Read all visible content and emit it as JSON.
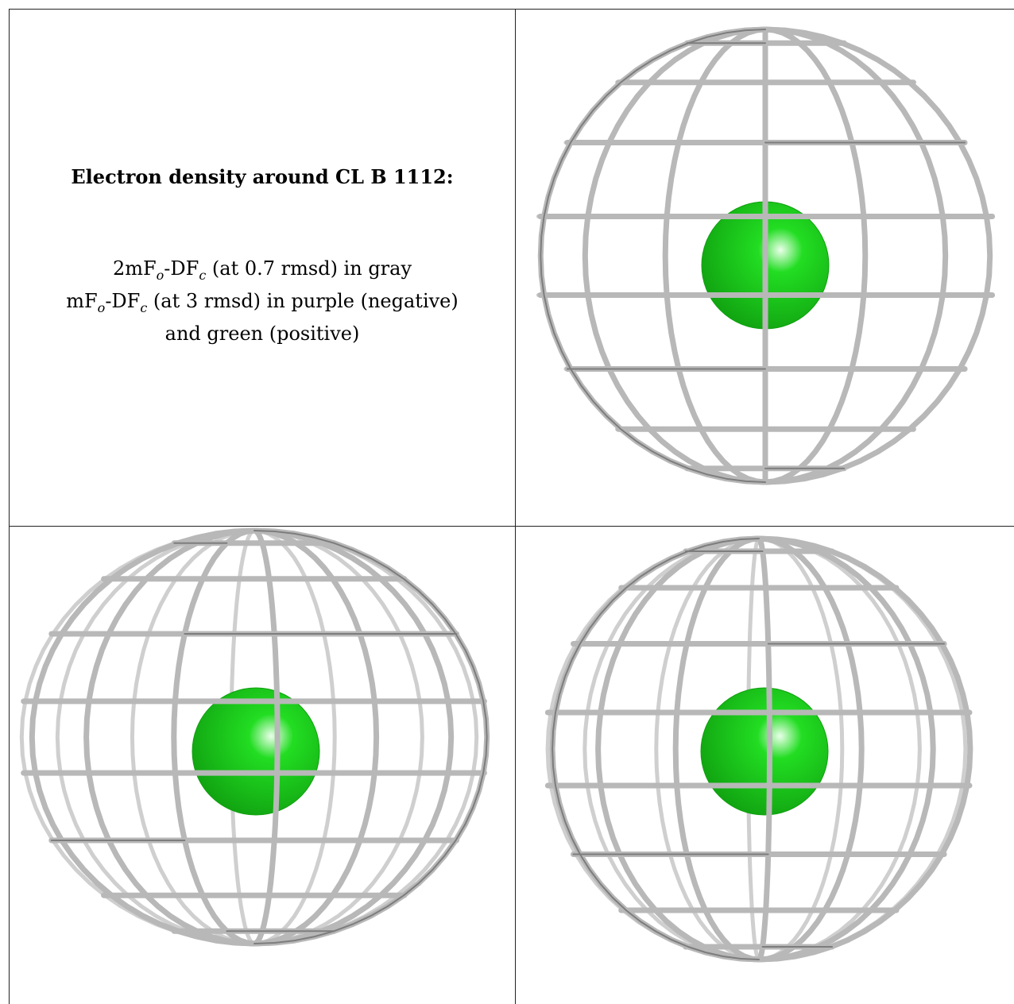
{
  "heading": "Electron density around CL B 1112:",
  "legend": {
    "line1": {
      "pre": "2mF",
      "sub1": "o",
      "mid": "-DF",
      "sub2": "c",
      "post": " (at 0.7 rmsd) in gray"
    },
    "line2": {
      "pre": "mF",
      "sub1": "o",
      "mid": "-DF",
      "sub2": "c",
      "post": " (at 3 rmsd) in purple (negative)"
    },
    "line3": "and green (positive)"
  },
  "colors": {
    "mesh": "#b8b8b8",
    "mesh_dark": "#7d7d7d",
    "atom": "#22dd22",
    "atom_dark": "#10a010",
    "border": "#222222"
  },
  "views": [
    {
      "name": "view-top-right",
      "atom": "CL"
    },
    {
      "name": "view-bottom-left",
      "atom": "CL"
    },
    {
      "name": "view-bottom-right",
      "atom": "CL"
    }
  ]
}
